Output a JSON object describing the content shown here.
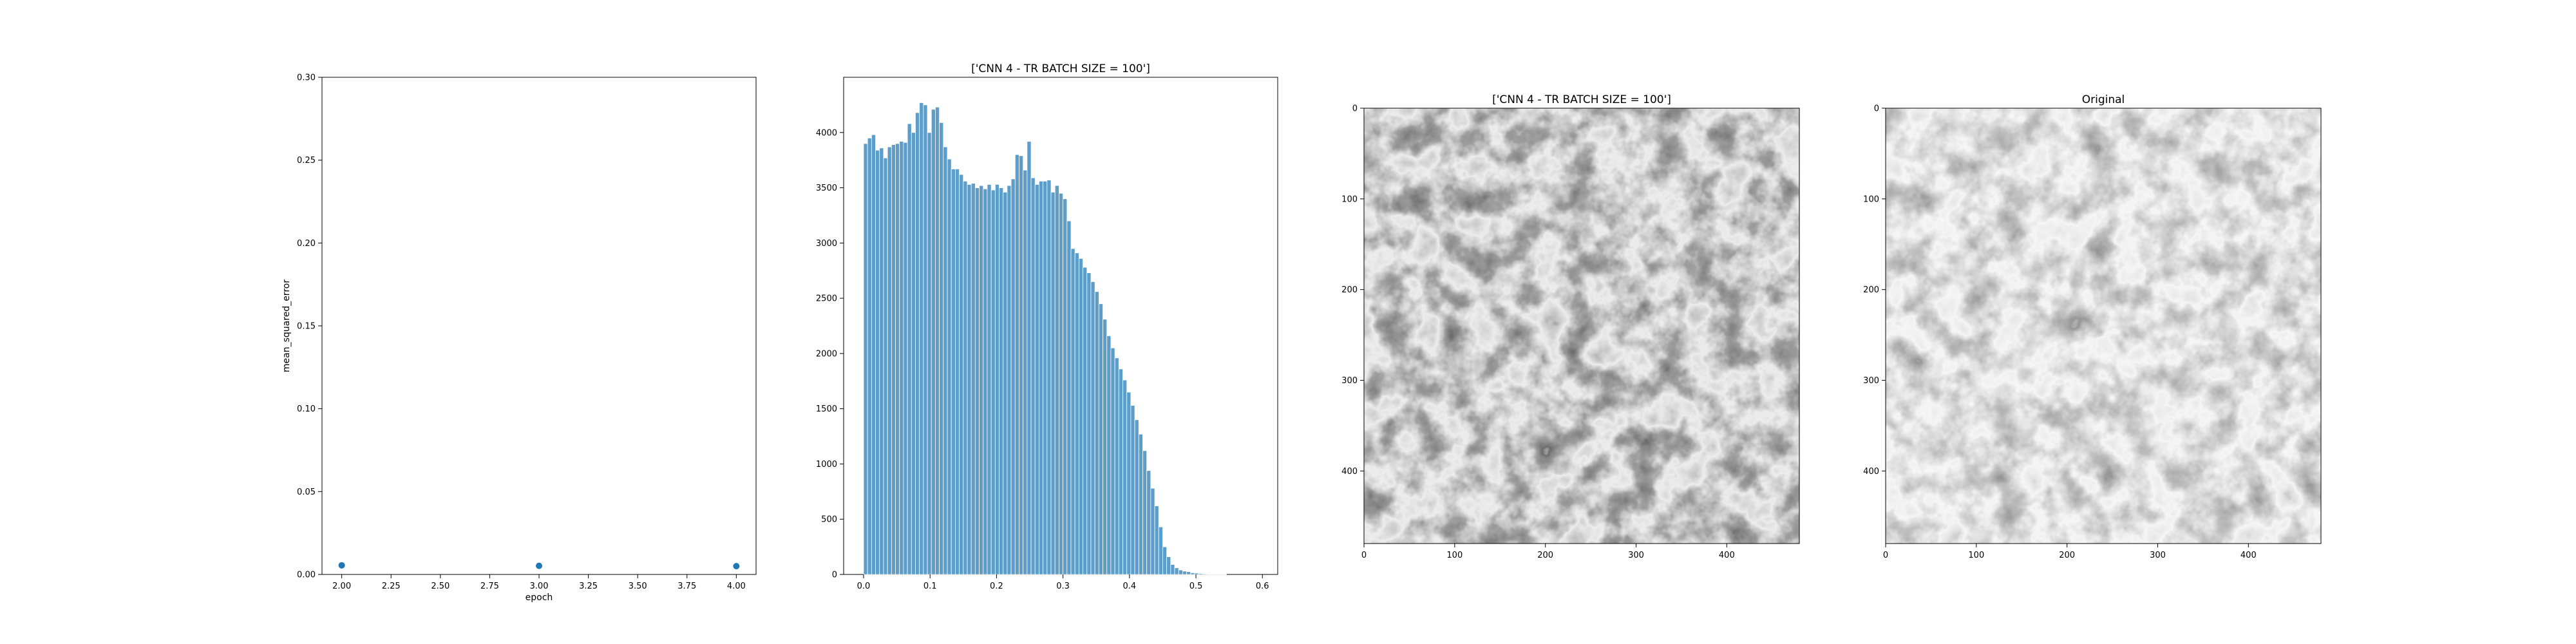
{
  "chart_data": [
    {
      "type": "scatter",
      "title": "",
      "xlabel": "epoch",
      "ylabel": "mean_squared_error",
      "xlim": [
        1.9,
        4.1
      ],
      "ylim": [
        0.0,
        0.3
      ],
      "xticks": [
        "2.00",
        "2.25",
        "2.50",
        "2.75",
        "3.00",
        "3.25",
        "3.50",
        "3.75",
        "4.00"
      ],
      "yticks": [
        "0.00",
        "0.05",
        "0.10",
        "0.15",
        "0.20",
        "0.25",
        "0.30"
      ],
      "grid": false,
      "color": "#1f77b4",
      "series": [
        {
          "x": [
            2,
            3,
            4
          ],
          "y": [
            0.0055,
            0.0052,
            0.005
          ]
        }
      ]
    },
    {
      "type": "bar",
      "title": "['CNN 4 - TR BATCH SIZE = 100']",
      "xlabel": "",
      "ylabel": "",
      "xlim": [
        -0.03,
        0.623
      ],
      "ylim": [
        0,
        4500
      ],
      "xticks": [
        "0.0",
        "0.1",
        "0.2",
        "0.3",
        "0.4",
        "0.5",
        "0.6"
      ],
      "yticks": [
        "0",
        "500",
        "1000",
        "1500",
        "2000",
        "2500",
        "3000",
        "3500",
        "4000"
      ],
      "grid": false,
      "color": "#1f77b4",
      "bin_start": 0.0,
      "bin_width": 0.006,
      "values": [
        3900,
        3950,
        3980,
        3840,
        3860,
        3770,
        3870,
        3890,
        3900,
        3920,
        3910,
        4080,
        4000,
        4180,
        4270,
        4250,
        4000,
        4210,
        4230,
        4090,
        3870,
        3760,
        3670,
        3670,
        3620,
        3560,
        3530,
        3540,
        3500,
        3520,
        3490,
        3530,
        3480,
        3530,
        3500,
        3460,
        3520,
        3580,
        3800,
        3790,
        3660,
        3920,
        3590,
        3530,
        3560,
        3560,
        3570,
        3460,
        3520,
        3450,
        3400,
        3200,
        2950,
        2910,
        2860,
        2780,
        2730,
        2650,
        2560,
        2450,
        2310,
        2160,
        2050,
        1960,
        1860,
        1760,
        1650,
        1530,
        1400,
        1270,
        1120,
        940,
        780,
        620,
        430,
        250,
        160,
        90,
        60,
        40,
        30,
        25,
        15,
        12,
        8,
        6,
        4,
        3,
        2,
        1,
        1
      ]
    },
    {
      "type": "image",
      "title": "['CNN 4 - TR BATCH SIZE = 100']",
      "xlim": [
        0,
        480
      ],
      "ylim": [
        480,
        0
      ],
      "xticks": [
        "0",
        "100",
        "200",
        "300",
        "400"
      ],
      "yticks": [
        "0",
        "100",
        "200",
        "300",
        "400"
      ],
      "colormap": "gray"
    },
    {
      "type": "image",
      "title": "Original",
      "xlim": [
        0,
        480
      ],
      "ylim": [
        480,
        0
      ],
      "xticks": [
        "0",
        "100",
        "200",
        "300",
        "400"
      ],
      "yticks": [
        "0",
        "100",
        "200",
        "300",
        "400"
      ],
      "colormap": "gray"
    }
  ]
}
